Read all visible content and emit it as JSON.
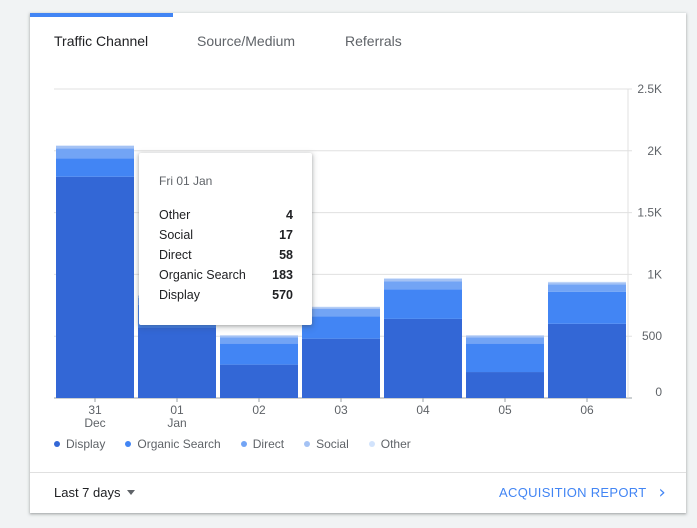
{
  "tabs": [
    {
      "label": "Traffic Channel",
      "active": true
    },
    {
      "label": "Source/Medium",
      "active": false
    },
    {
      "label": "Referrals",
      "active": false
    }
  ],
  "chart_data": {
    "type": "bar",
    "stacked": true,
    "categories": [
      {
        "day": "31",
        "month": "Dec"
      },
      {
        "day": "01",
        "month": "Jan"
      },
      {
        "day": "02",
        "month": ""
      },
      {
        "day": "03",
        "month": ""
      },
      {
        "day": "04",
        "month": ""
      },
      {
        "day": "05",
        "month": ""
      },
      {
        "day": "06",
        "month": ""
      }
    ],
    "series": [
      {
        "name": "Display",
        "color": "#3367d6",
        "values": [
          1790,
          570,
          270,
          480,
          640,
          210,
          600
        ]
      },
      {
        "name": "Organic Search",
        "color": "#4285f4",
        "values": [
          150,
          183,
          170,
          180,
          240,
          230,
          260
        ]
      },
      {
        "name": "Direct",
        "color": "#72a4f5",
        "values": [
          80,
          58,
          50,
          60,
          65,
          50,
          60
        ]
      },
      {
        "name": "Social",
        "color": "#a4c2f4",
        "values": [
          20,
          17,
          15,
          15,
          20,
          15,
          15
        ]
      },
      {
        "name": "Other",
        "color": "#d2e3fc",
        "values": [
          5,
          4,
          4,
          4,
          5,
          4,
          5
        ]
      }
    ],
    "y_ticks": [
      "0",
      "500",
      "1K",
      "1.5K",
      "2K",
      "2.5K"
    ],
    "ylim": [
      0,
      2500
    ],
    "grid": true,
    "legend_placement": "bottom"
  },
  "legend": [
    {
      "label": "Display",
      "color": "#3367d6"
    },
    {
      "label": "Organic Search",
      "color": "#4285f4"
    },
    {
      "label": "Direct",
      "color": "#72a4f5"
    },
    {
      "label": "Social",
      "color": "#a4c2f4"
    },
    {
      "label": "Other",
      "color": "#d2e3fc"
    }
  ],
  "tooltip": {
    "date": "Fri 01 Jan",
    "rows": [
      {
        "label": "Other",
        "value": "4"
      },
      {
        "label": "Social",
        "value": "17"
      },
      {
        "label": "Direct",
        "value": "58"
      },
      {
        "label": "Organic Search",
        "value": "183"
      },
      {
        "label": "Display",
        "value": "570"
      }
    ]
  },
  "footer": {
    "range_label": "Last 7 days",
    "report_link": "ACQUISITION REPORT"
  },
  "icons": {
    "range_caret": "caret-down-icon",
    "report_chevron": "chevron-right-icon"
  }
}
